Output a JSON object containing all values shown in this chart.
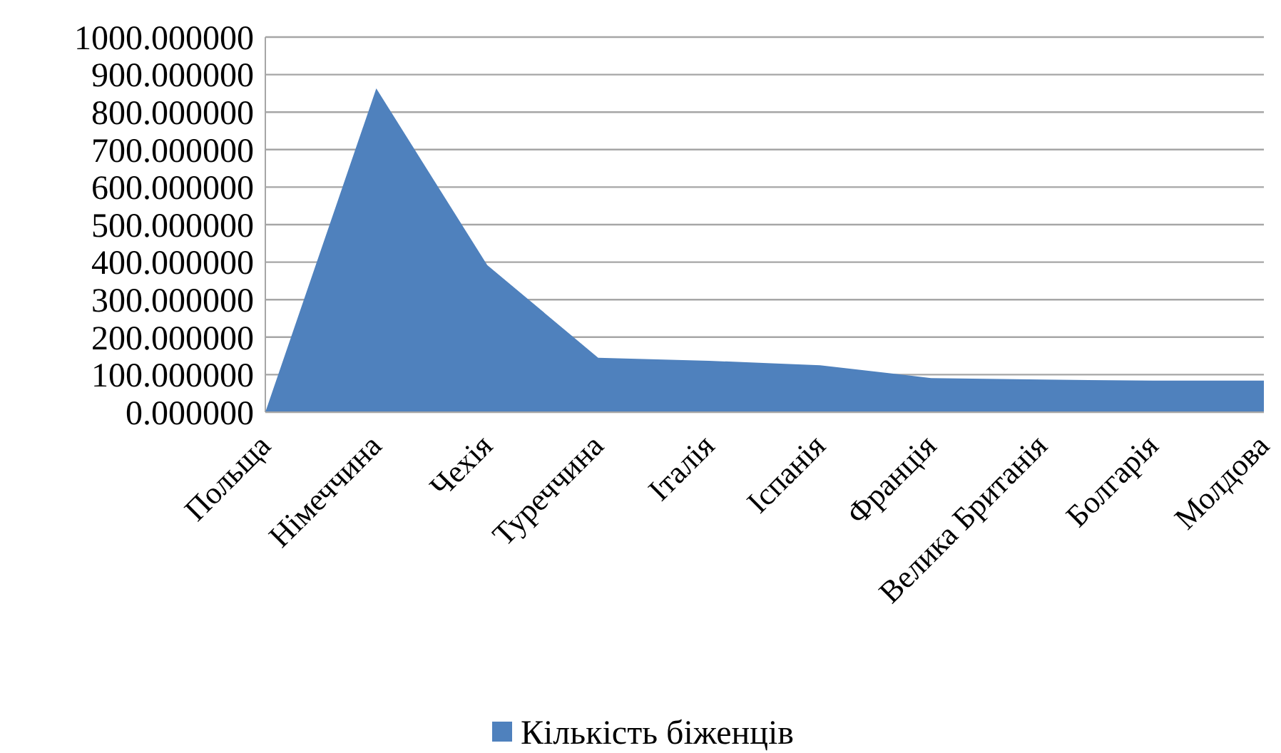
{
  "chart_data": {
    "type": "area",
    "categories": [
      "Польща",
      "Німеччина",
      "Чехія",
      "Туреччина",
      "Італія",
      "Іспанія",
      "Франція",
      "Велика Британія",
      "Болгарія",
      "Молдова"
    ],
    "series": [
      {
        "name": "Кількість біженців",
        "color": "#4f81bd",
        "values": [
          0,
          863,
          392,
          145,
          137,
          125,
          91,
          87,
          84,
          84
        ]
      }
    ],
    "ylim": [
      0,
      1000
    ],
    "yticks": [
      {
        "value": 0,
        "label": "0.000000"
      },
      {
        "value": 100,
        "label": "100.000000"
      },
      {
        "value": 200,
        "label": "200.000000"
      },
      {
        "value": 300,
        "label": "300.000000"
      },
      {
        "value": 400,
        "label": "400.000000"
      },
      {
        "value": 500,
        "label": "500.000000"
      },
      {
        "value": 600,
        "label": "600.000000"
      },
      {
        "value": 700,
        "label": "700.000000"
      },
      {
        "value": 800,
        "label": "800.000000"
      },
      {
        "value": 900,
        "label": "900.000000"
      },
      {
        "value": 1000,
        "label": "1000.000000"
      }
    ],
    "grid": "y",
    "legend": "bottom"
  }
}
